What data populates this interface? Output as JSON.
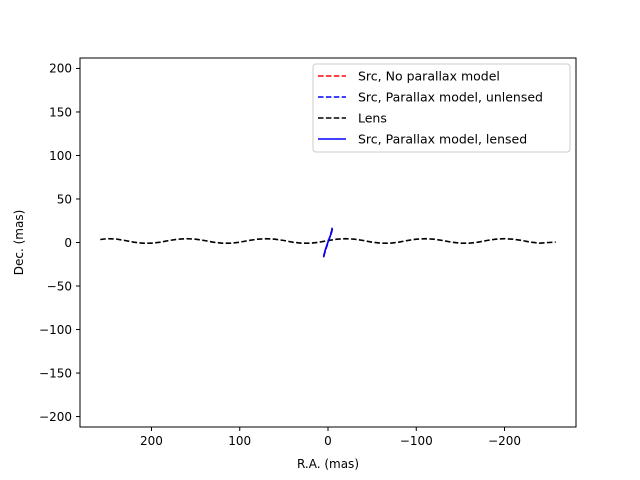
{
  "chart_data": {
    "type": "line",
    "title": "",
    "xlabel": "R.A. (mas)",
    "ylabel": "Dec. (mas)",
    "xlim": [
      281,
      -281
    ],
    "ylim": [
      -212,
      212
    ],
    "xaxis_inverted": true,
    "grid": false,
    "legend_position": "upper-right",
    "xticks": [
      {
        "value": 200,
        "label": "200"
      },
      {
        "value": 100,
        "label": "100"
      },
      {
        "value": 0,
        "label": "0"
      },
      {
        "value": -100,
        "label": "−100"
      },
      {
        "value": -200,
        "label": "−200"
      }
    ],
    "yticks": [
      {
        "value": 200,
        "label": "200"
      },
      {
        "value": 150,
        "label": "150"
      },
      {
        "value": 100,
        "label": "100"
      },
      {
        "value": 50,
        "label": "50"
      },
      {
        "value": 0,
        "label": "0"
      },
      {
        "value": -50,
        "label": "−50"
      },
      {
        "value": -100,
        "label": "−100"
      },
      {
        "value": -150,
        "label": "−150"
      },
      {
        "value": -200,
        "label": "−200"
      }
    ],
    "series": [
      {
        "name": "Src, No parallax model",
        "color": "#ff0000",
        "style": "dashed",
        "x": [
          5,
          4,
          3,
          2,
          1,
          0,
          -1,
          -2,
          -3,
          -4,
          -5
        ],
        "y": [
          -16,
          -13,
          -10,
          -6,
          -3,
          0,
          3,
          6,
          10,
          13,
          16
        ]
      },
      {
        "name": "Src, Parallax model, unlensed",
        "color": "#0000ff",
        "style": "dashed",
        "x": [
          5,
          4.4,
          3.6,
          2.7,
          1.6,
          0.5,
          -0.6,
          -1.7,
          -2.8,
          -3.8,
          -4.6,
          -5
        ],
        "y": [
          -17,
          -14,
          -11,
          -8,
          -5,
          -2,
          2,
          5,
          8,
          11,
          14,
          17
        ]
      },
      {
        "name": "Lens",
        "color": "#000000",
        "style": "dashed",
        "x": [
          258,
          250,
          240,
          230,
          220,
          210,
          200,
          190,
          180,
          170,
          160,
          150,
          140,
          130,
          120,
          110,
          100,
          90,
          80,
          70,
          60,
          50,
          40,
          30,
          20,
          10,
          0,
          -10,
          -20,
          -30,
          -40,
          -50,
          -60,
          -70,
          -80,
          -90,
          -100,
          -110,
          -120,
          -130,
          -140,
          -150,
          -160,
          -170,
          -180,
          -190,
          -200,
          -210,
          -220,
          -230,
          -240,
          -250,
          -258
        ],
        "y": [
          3.5,
          4.4,
          4,
          2.3,
          0.4,
          -0.8,
          -0.8,
          0.4,
          2.3,
          3.8,
          4.4,
          3.8,
          2.3,
          0.4,
          -0.8,
          -0.8,
          0.4,
          2.3,
          3.8,
          4.4,
          3.8,
          2.3,
          0.4,
          -0.8,
          -0.8,
          0.4,
          2.3,
          3.8,
          4.4,
          3.8,
          2.3,
          0.4,
          -0.8,
          -0.8,
          0.4,
          2.3,
          3.8,
          4.4,
          3.8,
          2.3,
          0.4,
          -0.8,
          -0.8,
          0.4,
          2.3,
          3.8,
          4.4,
          3.8,
          2.3,
          0.4,
          -0.8,
          0,
          0.5
        ]
      },
      {
        "name": "Src, Parallax model, lensed",
        "color": "#0000ff",
        "style": "solid",
        "x": [
          4.8,
          4.2,
          3.5,
          2.6,
          1.6,
          0.6,
          -0.5,
          -1.6,
          -2.7,
          -3.6,
          -4.3,
          -4.8
        ],
        "y": [
          -16,
          -13,
          -10,
          -7,
          -4,
          -1,
          2,
          5,
          8,
          11,
          14,
          17
        ]
      }
    ]
  }
}
